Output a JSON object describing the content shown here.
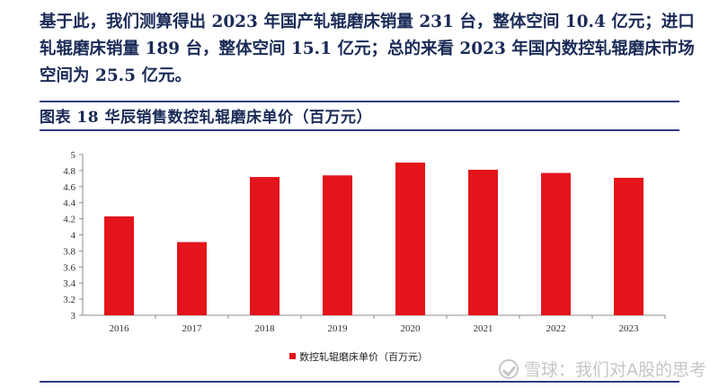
{
  "paragraph": "基于此，我们测算得出 2023 年国产轧辊磨床销量 231 台，整体空间 10.4 亿元；进口轧辊磨床销量 189 台，整体空间 15.1 亿元；总的来看 2023 年国内数控轧辊磨床市场空间为 25.5 亿元。",
  "figure_title": "图表 18   华辰销售数控轧辊磨床单价（百万元）",
  "watermark": "雪球：我们对A股的思考",
  "colors": {
    "bar": "#e3141b",
    "title": "#1a2b57",
    "rule": "#2d3d80"
  },
  "chart_data": {
    "type": "bar",
    "categories": [
      "2016",
      "2017",
      "2018",
      "2019",
      "2020",
      "2021",
      "2022",
      "2023"
    ],
    "series": [
      {
        "name": "数控轧辊磨床单价（百万元）",
        "values": [
          4.23,
          3.91,
          4.72,
          4.74,
          4.9,
          4.81,
          4.77,
          4.71
        ]
      }
    ],
    "ylim": [
      3,
      5
    ],
    "yticks": [
      3,
      3.2,
      3.4,
      3.6,
      3.8,
      4,
      4.2,
      4.4,
      4.6,
      4.8,
      5
    ],
    "ytick_labels": [
      "3",
      "3.2",
      "3.4",
      "3.6",
      "3.8",
      "4",
      "4.2",
      "4.4",
      "4.6",
      "4.8",
      "5"
    ],
    "grid": false,
    "legend": "bottom"
  }
}
